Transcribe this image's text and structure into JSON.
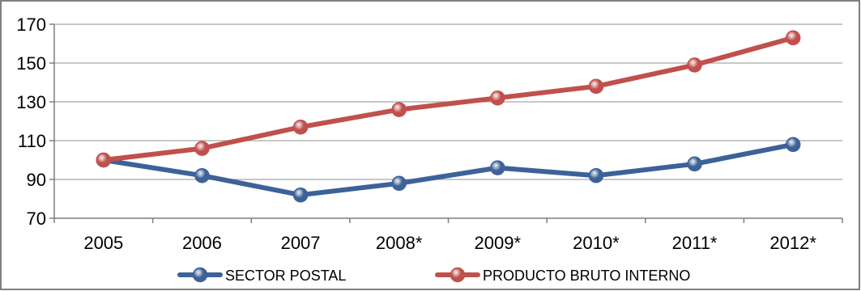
{
  "chart_data": {
    "type": "line",
    "categories": [
      "2005",
      "2006",
      "2007",
      "2008*",
      "2009*",
      "2010*",
      "2011*",
      "2012*"
    ],
    "series": [
      {
        "name": "SECTOR POSTAL",
        "values": [
          100,
          92,
          82,
          88,
          96,
          92,
          98,
          108
        ],
        "color": "#3C6298"
      },
      {
        "name": "PRODUCTO BRUTO INTERNO",
        "values": [
          100,
          106,
          117,
          126,
          132,
          138,
          149,
          163
        ],
        "color": "#C0504D"
      }
    ],
    "yticks": [
      70,
      90,
      110,
      130,
      150,
      170
    ],
    "ylim": [
      70,
      170
    ],
    "title": "",
    "xlabel": "",
    "ylabel": "",
    "grid": true,
    "legend_position": "bottom"
  }
}
